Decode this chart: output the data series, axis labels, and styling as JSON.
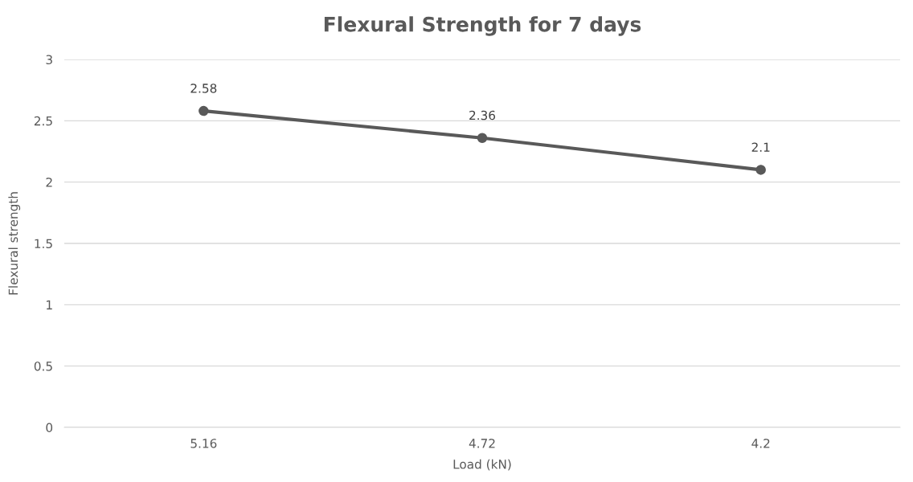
{
  "chart_data": {
    "type": "line",
    "title": "Flexural Strength for 7 days",
    "xlabel": "Load (kN)",
    "ylabel": "Flexural strength",
    "categories": [
      "5.16",
      "4.72",
      "4.2"
    ],
    "series": [
      {
        "color": "#595959",
        "values": [
          2.58,
          2.36,
          2.1
        ]
      }
    ],
    "ylim": [
      0,
      3
    ],
    "yticks": [
      0,
      0.5,
      1,
      1.5,
      2,
      2.5,
      3
    ],
    "grid": "y",
    "marker": "circle",
    "line_style": "solid",
    "data_labels": true
  }
}
